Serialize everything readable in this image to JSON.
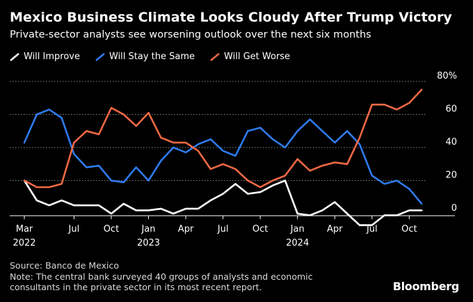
{
  "title": "Mexico Business Climate Looks Cloudy After Trump Victory",
  "subtitle": "Private-sector analysts see worsening outlook over the next six months",
  "legend": [
    {
      "label": "Will Improve",
      "color": "#ffffff"
    },
    {
      "label": "Will Stay the Same",
      "color": "#2f7bf0"
    },
    {
      "label": "Will Get Worse",
      "color": "#f26a45"
    }
  ],
  "source": "Source: Banco de Mexico",
  "note": "Note: The central bank surveyed 40 groups of analysts and economic consultants in the private sector in its most recent report.",
  "brand": "Bloomberg",
  "chart_data": {
    "type": "line",
    "title": "Mexico Business Climate Looks Cloudy After Trump Victory",
    "ylim": [
      0,
      80
    ],
    "yticks": [
      0,
      20,
      40,
      60,
      80
    ],
    "ytick_labels": [
      "0",
      "20",
      "40",
      "60",
      "80%"
    ],
    "x_start": "2022-03",
    "x_ticks": [
      {
        "index": 0,
        "label": "Mar",
        "year": "2022"
      },
      {
        "index": 4,
        "label": "Jul",
        "year": ""
      },
      {
        "index": 7,
        "label": "Oct",
        "year": ""
      },
      {
        "index": 10,
        "label": "Jan",
        "year": "2023"
      },
      {
        "index": 13,
        "label": "Apr",
        "year": ""
      },
      {
        "index": 16,
        "label": "Jul",
        "year": ""
      },
      {
        "index": 19,
        "label": "Oct",
        "year": ""
      },
      {
        "index": 22,
        "label": "Jan",
        "year": "2024"
      },
      {
        "index": 25,
        "label": "Apr",
        "year": ""
      },
      {
        "index": 28,
        "label": "Jul",
        "year": ""
      },
      {
        "index": 31,
        "label": "Oct",
        "year": ""
      }
    ],
    "series": [
      {
        "name": "Will Improve",
        "color": "#ffffff",
        "values": [
          20,
          8,
          5,
          8,
          5,
          5,
          5,
          0,
          6,
          2,
          2,
          3,
          0,
          3,
          3,
          8,
          12,
          18,
          12,
          13,
          17,
          20,
          0,
          -1,
          2,
          7,
          0,
          -7,
          -7,
          -1,
          -1,
          2,
          2
        ]
      },
      {
        "name": "Will Stay the Same",
        "color": "#2f7bf0",
        "values": [
          43,
          60,
          63,
          58,
          36,
          28,
          29,
          20,
          19,
          28,
          20,
          32,
          40,
          37,
          42,
          45,
          38,
          35,
          50,
          52,
          45,
          40,
          50,
          57,
          50,
          43,
          50,
          42,
          23,
          18,
          20,
          15,
          6
        ]
      },
      {
        "name": "Will Get Worse",
        "color": "#f26a45",
        "values": [
          20,
          16,
          16,
          18,
          43,
          50,
          48,
          64,
          60,
          53,
          61,
          46,
          43,
          43,
          38,
          27,
          30,
          27,
          20,
          16,
          20,
          23,
          33,
          26,
          29,
          31,
          30,
          46,
          66,
          66,
          63,
          67,
          75
        ]
      }
    ]
  }
}
